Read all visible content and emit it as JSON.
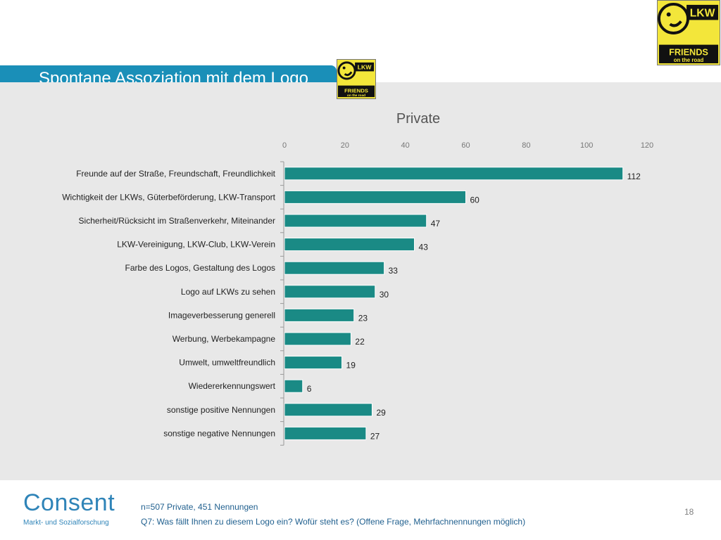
{
  "header": {
    "title": "Spontane Assoziation mit dem Logo",
    "logo_text_top": "LKW",
    "logo_text_mid": "FRIENDS",
    "logo_text_bottom": "on the road"
  },
  "colors": {
    "bar": "#1a8a85",
    "title_bar": "#1a8fb8",
    "panel": "#e8e8e8",
    "logo_yellow": "#f3e63a"
  },
  "chart_data": {
    "type": "bar",
    "orientation": "horizontal",
    "title": "Private",
    "categories": [
      "Freunde auf der Straße, Freundschaft, Freundlichkeit",
      "Wichtigkeit der LKWs, Güterbeförderung, LKW-Transport",
      "Sicherheit/Rücksicht im Straßenverkehr, Miteinander",
      "LKW-Vereinigung, LKW-Club, LKW-Verein",
      "Farbe des Logos, Gestaltung des Logos",
      "Logo auf LKWs zu sehen",
      "Imageverbesserung generell",
      "Werbung, Werbekampagne",
      "Umwelt, umweltfreundlich",
      "Wiedererkennungswert",
      "sonstige positive Nennungen",
      "sonstige negative Nennungen"
    ],
    "values": [
      112,
      60,
      47,
      43,
      33,
      30,
      23,
      22,
      19,
      6,
      29,
      27
    ],
    "xlim": [
      0,
      120
    ],
    "xticks": [
      0,
      20,
      40,
      60,
      80,
      100,
      120
    ],
    "tick_position": "top",
    "grid": false,
    "data_labels": true
  },
  "footer": {
    "brand": "Consent",
    "brand_sub": "Markt- und Sozialforschung",
    "note1": "n=507 Private, 451 Nennungen",
    "note2": "Q7: Was fällt Ihnen zu diesem Logo ein? Wofür steht es? (Offene Frage, Mehrfachnennungen möglich)",
    "page_number": "18"
  }
}
